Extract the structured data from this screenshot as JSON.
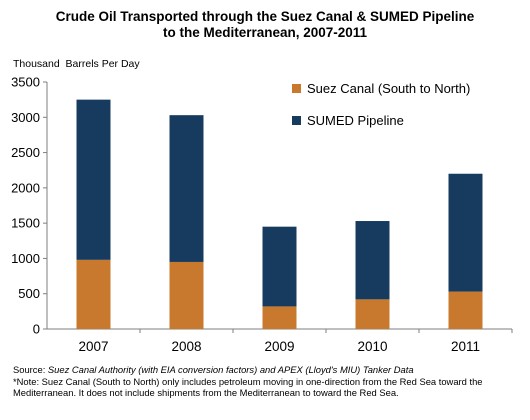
{
  "chart_data": {
    "type": "bar",
    "stacked": true,
    "title_lines": [
      "Crude Oil Transported through the Suez Canal & SUMED Pipeline",
      "to the Mediterranean, 2007-2011"
    ],
    "ylabel": "Thousand  Barrels Per Day",
    "xlabel": "",
    "ylim": [
      0,
      3500
    ],
    "yticks": [
      0,
      500,
      1000,
      1500,
      2000,
      2500,
      3000,
      3500
    ],
    "categories": [
      "2007",
      "2008",
      "2009",
      "2010",
      "2011"
    ],
    "series": [
      {
        "name": "Suez Canal (South to North)",
        "color": "#c8792e",
        "values": [
          980,
          950,
          320,
          420,
          530
        ]
      },
      {
        "name": "SUMED Pipeline",
        "color": "#173b5e",
        "values": [
          2270,
          2080,
          1130,
          1110,
          1670
        ]
      }
    ],
    "grid": false,
    "legend_position": "top-right"
  },
  "footer": {
    "source_prefix": "Source: ",
    "source_italic": "Suez Canal Authority (with EIA conversion factors) and APEX (Lloyd's MIU) Tanker Data",
    "note": "*Note: Suez Canal (South to North) only includes petroleum moving in one-direction from the Red Sea toward the Mediterranean. It does not include shipments from the Mediterranean to toward the Red Sea."
  }
}
